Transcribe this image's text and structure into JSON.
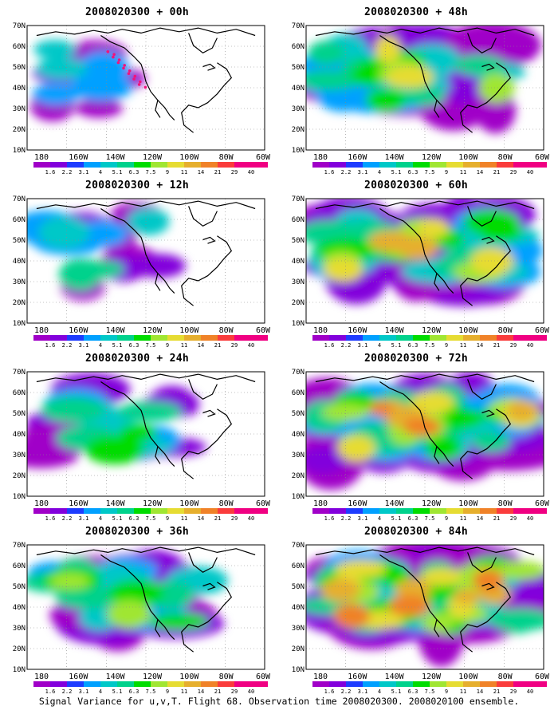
{
  "panels": [
    {
      "title": "2008020300 + 00h",
      "level": 0
    },
    {
      "title": "2008020300 + 12h",
      "level": 1
    },
    {
      "title": "2008020300 + 24h",
      "level": 2
    },
    {
      "title": "2008020300 + 36h",
      "level": 3
    },
    {
      "title": "2008020300 + 48h",
      "level": 4
    },
    {
      "title": "2008020300 + 60h",
      "level": 5
    },
    {
      "title": "2008020300 + 72h",
      "level": 6
    },
    {
      "title": "2008020300 + 84h",
      "level": 7
    }
  ],
  "axes": {
    "lat_labels": [
      "70N",
      "60N",
      "50N",
      "40N",
      "30N",
      "20N",
      "10N"
    ],
    "lon_labels": [
      "180",
      "160W",
      "140W",
      "120W",
      "100W",
      "80W",
      "60W"
    ]
  },
  "colorbar": {
    "labels": [
      "1.6",
      "2.2",
      "3.1",
      "4",
      "5.1",
      "6.3",
      "7.5",
      "9",
      "11",
      "14",
      "21",
      "29",
      "40"
    ],
    "colors": [
      "#a000c8",
      "#8200dc",
      "#1e3cff",
      "#00a0ff",
      "#00c8c8",
      "#00d28c",
      "#00dc00",
      "#a0e632",
      "#e6dc32",
      "#e6af2d",
      "#f08228",
      "#fa3c3c",
      "#f00082"
    ]
  },
  "footer": "Signal Variance for u,v,T. Flight 68. Observation time 2008020300. 2008020100 ensemble."
}
